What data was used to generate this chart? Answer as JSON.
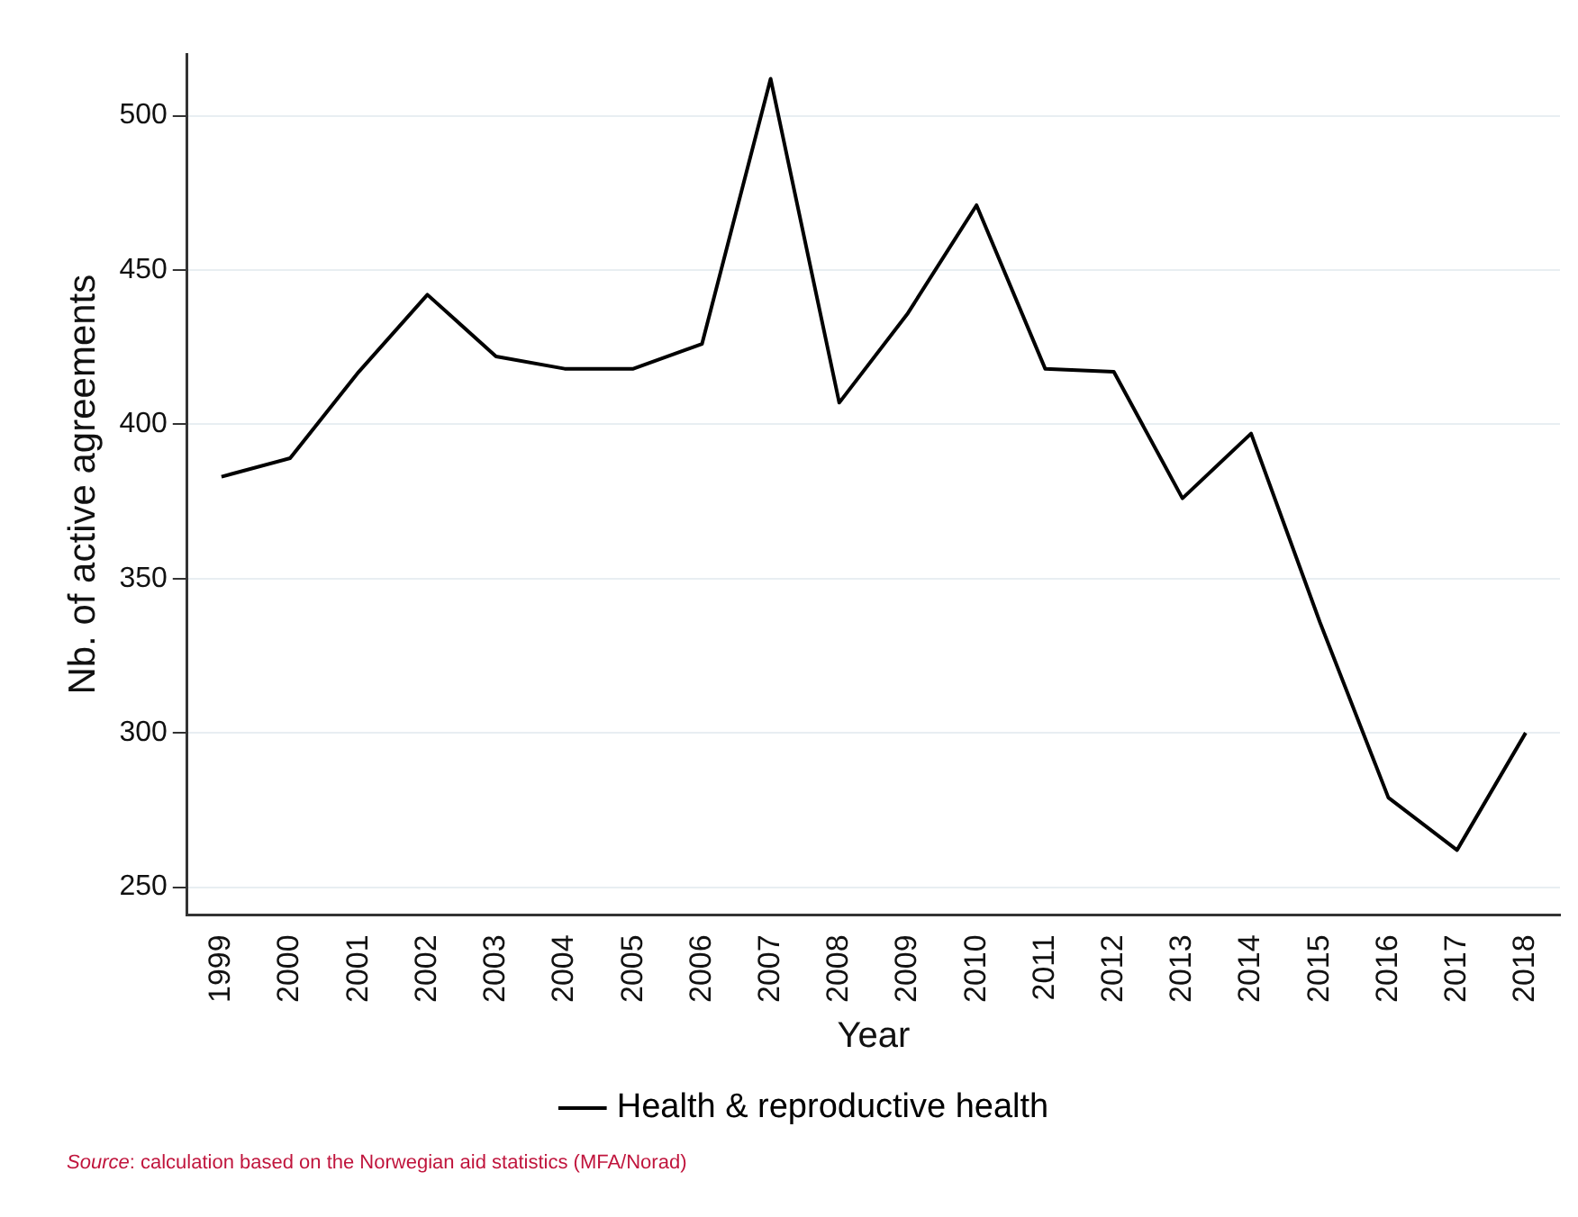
{
  "chart_data": {
    "type": "line",
    "xlabel": "Year",
    "ylabel": "Nb. of active agreements",
    "categories": [
      "1999",
      "2000",
      "2001",
      "2002",
      "2003",
      "2004",
      "2005",
      "2006",
      "2007",
      "2008",
      "2009",
      "2010",
      "2011",
      "2012",
      "2013",
      "2014",
      "2015",
      "2016",
      "2017",
      "2018"
    ],
    "series": [
      {
        "name": "Health & reproductive health",
        "color": "#000000",
        "values": [
          383,
          389,
          417,
          442,
          422,
          418,
          418,
          426,
          512,
          407,
          436,
          471,
          418,
          417,
          376,
          397,
          336,
          279,
          262,
          300
        ]
      }
    ],
    "ylim": [
      241,
      520
    ],
    "yticks": [
      250,
      300,
      350,
      400,
      450,
      500
    ],
    "grid": "y",
    "legend": "bottom",
    "marker": "none",
    "line_style": "solid",
    "annotations": [
      "Source: calculation based on the Norwegian aid statistics (MFA/Norad)"
    ]
  }
}
